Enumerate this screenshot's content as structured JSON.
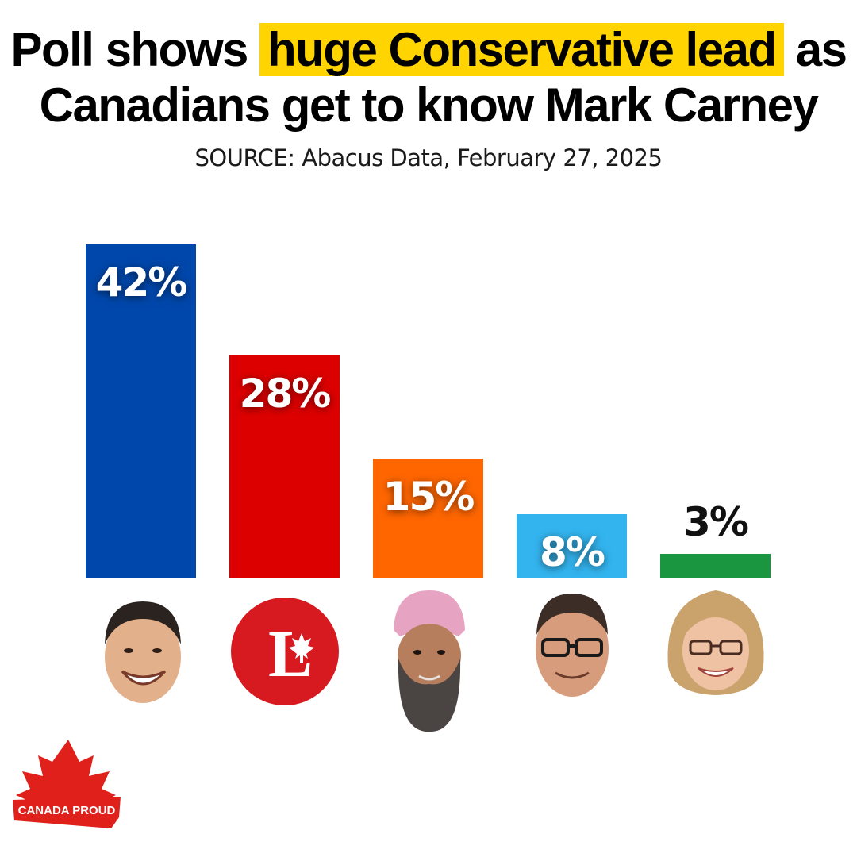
{
  "header": {
    "title_line1_before": "Poll shows ",
    "title_highlight": "huge Conservative lead",
    "title_line1_after": " as",
    "title_line2": "Canadians get to know Mark Carney",
    "source": "SOURCE: Abacus Data, February 27, 2025"
  },
  "chart_data": {
    "type": "bar",
    "values": [
      42,
      28,
      15,
      8,
      3
    ],
    "data_labels": [
      "42%",
      "28%",
      "15%",
      "8%",
      "3%"
    ],
    "colors": [
      "#0047ab",
      "#dd0000",
      "#ff6600",
      "#33b4ee",
      "#1a9640"
    ],
    "category_icons": [
      "conservative-leader-portrait-icon",
      "liberal-party-logo-icon",
      "ndp-leader-portrait-icon",
      "bloc-leader-portrait-icon",
      "green-leader-portrait-icon"
    ],
    "ylim": [
      0,
      42
    ]
  },
  "branding": {
    "logo_text": "CANADA PROUD",
    "logo_color": "#e0201b"
  }
}
